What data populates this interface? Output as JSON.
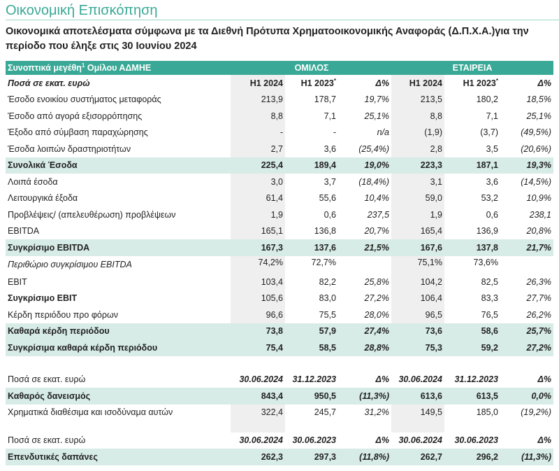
{
  "title": "Οικονομική Επισκόπηση",
  "subtitle": "Οικονομικά αποτελέσματα σύμφωνα με τα Διεθνή Πρότυπα Χρηματοοικονομικής Αναφοράς (Δ.Π.Χ.Α.)για την περίοδο που έληξε στις 30 Ιουνίου 2024",
  "band": {
    "label": "Συνοπτικά μεγέθη",
    "sup": "1",
    "label2": " Ομίλου ΑΔΜΗΕ",
    "group": "ΟΜΙΛΟΣ",
    "company": "ΕΤΑΙΡΕΙΑ"
  },
  "section1": {
    "header": {
      "label": "Ποσά σε εκατ. ευρώ",
      "cols": [
        "H1 2024",
        "H1 2023",
        "Δ%",
        "H1 2024",
        "H1 2023",
        "Δ%"
      ],
      "sup": "*"
    },
    "rows": [
      {
        "label": "Έσοδο ενοικίου συστήματος μεταφοράς",
        "values": [
          "213,9",
          "178,7",
          "19,7%",
          "213,5",
          "180,2",
          "18,5%"
        ],
        "style": ""
      },
      {
        "label": "Έσοδο από αγορά εξισορρόπησης",
        "values": [
          "8,8",
          "7,1",
          "25,1%",
          "8,8",
          "7,1",
          "25,1%"
        ],
        "style": ""
      },
      {
        "label": "Έξοδο από σύμβαση παραχώρησης",
        "values": [
          "-",
          "-",
          "n/a",
          "(1,9)",
          "(3,7)",
          "(49,5%)"
        ],
        "style": ""
      },
      {
        "label": "Έσοδα λοιπών δραστηριοτήτων",
        "values": [
          "2,7",
          "3,6",
          "(25,4%)",
          "2,8",
          "3,5",
          "(20,6%)"
        ],
        "style": ""
      },
      {
        "label": "Συνολικά Έσοδα",
        "values": [
          "225,4",
          "189,4",
          "19,0%",
          "223,3",
          "187,1",
          "19,3%"
        ],
        "style": "hl"
      },
      {
        "label": "Λοιπά έσοδα",
        "values": [
          "3,0",
          "3,7",
          "(18,4%)",
          "3,1",
          "3,6",
          "(14,5%)"
        ],
        "style": ""
      },
      {
        "label": "Λειτουργικά έξοδα",
        "values": [
          "61,4",
          "55,6",
          "10,4%",
          "59,0",
          "53,2",
          "10,9%"
        ],
        "style": ""
      },
      {
        "label": "Προβλέψεις/ (απελευθέρωση) προβλέψεων",
        "values": [
          "1,9",
          "0,6",
          "237,5",
          "1,9",
          "0,6",
          "238,1"
        ],
        "style": ""
      },
      {
        "label": "EBITDA",
        "values": [
          "165,1",
          "136,8",
          "20,7%",
          "165,4",
          "136,9",
          "20,8%"
        ],
        "style": ""
      },
      {
        "label": "Συγκρίσιμο EBITDA",
        "values": [
          "167,3",
          "137,6",
          "21,5%",
          "167,6",
          "137,8",
          "21,7%"
        ],
        "style": "hl"
      },
      {
        "label": "Περιθώριο συγκρίσιμου EBITDA",
        "values": [
          "74,2%",
          "72,7%",
          "",
          "75,1%",
          "73,6%",
          ""
        ],
        "style": "italic"
      },
      {
        "label": "EBIT",
        "values": [
          "103,4",
          "82,2",
          "25,8%",
          "104,2",
          "82,5",
          "26,3%"
        ],
        "style": ""
      },
      {
        "label": "Συγκρίσιμο EBIT",
        "values": [
          "105,6",
          "83,0",
          "27,2%",
          "106,4",
          "83,3",
          "27,7%"
        ],
        "style": "boldlbl"
      },
      {
        "label": "Κέρδη περιόδου προ φόρων",
        "values": [
          "96,6",
          "75,5",
          "28,0%",
          "96,5",
          "76,5",
          "26,2%"
        ],
        "style": ""
      },
      {
        "label": "Καθαρά κέρδη περιόδου",
        "values": [
          "73,8",
          "57,9",
          "27,4%",
          "73,6",
          "58,6",
          "25,7%"
        ],
        "style": "hl"
      },
      {
        "label": "Συγκρίσιμα καθαρά κέρδη περιόδου",
        "values": [
          "75,4",
          "58,5",
          "28,8%",
          "75,3",
          "59,2",
          "27,2%"
        ],
        "style": "hl"
      }
    ]
  },
  "section2": {
    "header": {
      "label": "Ποσά σε εκατ. ευρώ",
      "cols": [
        "30.06.2024",
        "31.12.2023",
        "Δ%",
        "30.06.2024",
        "31.12.2023",
        "Δ%"
      ]
    },
    "rows": [
      {
        "label": "Καθαρός δανεισμός",
        "values": [
          "843,4",
          "950,5",
          "(11,3%)",
          "613,6",
          "613,5",
          "0,0%"
        ],
        "style": "hl"
      },
      {
        "label": "Χρηματικά διαθέσιμα και ισοδύναμα αυτών",
        "values": [
          "322,4",
          "245,7",
          "31,2%",
          "149,5",
          "185,0",
          "(19,2%)"
        ],
        "style": "tall"
      }
    ]
  },
  "section3": {
    "header": {
      "label": "Ποσά σε εκατ. ευρώ",
      "cols": [
        "30.06.2024",
        "30.06.2023",
        "Δ%",
        "30.06.2024",
        "30.06.2023",
        "Δ%"
      ]
    },
    "rows": [
      {
        "label": "Επενδυτικές δαπάνες",
        "values": [
          "262,3",
          "297,3",
          "(11,8%)",
          "262,7",
          "296,2",
          "(11,3%)"
        ],
        "style": "hl"
      }
    ]
  }
}
